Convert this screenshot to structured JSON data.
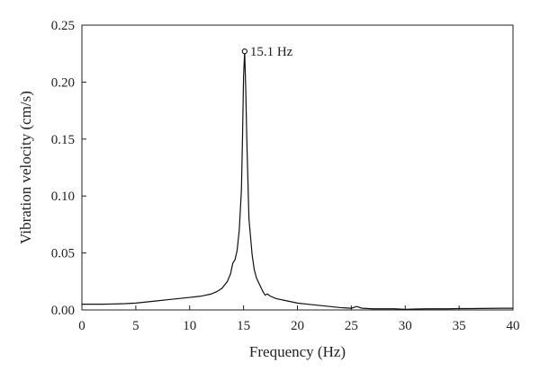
{
  "chart_data": {
    "type": "line",
    "title": "",
    "xlabel": "Frequency (Hz)",
    "ylabel": "Vibration velocity (cm/s)",
    "xlim": [
      0,
      40
    ],
    "ylim": [
      0,
      0.25
    ],
    "x_ticks": [
      "0",
      "5",
      "10",
      "15",
      "20",
      "25",
      "30",
      "35",
      "40"
    ],
    "y_ticks": [
      "0.00",
      "0.05",
      "0.10",
      "0.15",
      "0.20",
      "0.25"
    ],
    "grid": false,
    "legend": "none",
    "line_color": "#111111",
    "series": [
      {
        "x": [
          0,
          2,
          4,
          5,
          6,
          7,
          8,
          9,
          10,
          11,
          12,
          12.5,
          13,
          13.5,
          13.8,
          14,
          14.2,
          14.4,
          14.6,
          14.8,
          14.9,
          15.0,
          15.1,
          15.2,
          15.3,
          15.5,
          15.8,
          16,
          16.2,
          16.5,
          16.8,
          17,
          17.2,
          17.5,
          18,
          19,
          20,
          21,
          22,
          23,
          24,
          25,
          25.5,
          26,
          27,
          28,
          29,
          30,
          31,
          32,
          33,
          34,
          35,
          36,
          37,
          38,
          39,
          40
        ],
        "y": [
          0.005,
          0.005,
          0.0055,
          0.006,
          0.007,
          0.008,
          0.009,
          0.01,
          0.011,
          0.012,
          0.014,
          0.016,
          0.019,
          0.025,
          0.032,
          0.041,
          0.044,
          0.052,
          0.07,
          0.105,
          0.15,
          0.205,
          0.227,
          0.195,
          0.15,
          0.08,
          0.048,
          0.035,
          0.028,
          0.022,
          0.016,
          0.013,
          0.014,
          0.012,
          0.01,
          0.008,
          0.006,
          0.005,
          0.004,
          0.003,
          0.002,
          0.0015,
          0.003,
          0.0015,
          0.001,
          0.001,
          0.001,
          0.0005,
          0.0008,
          0.001,
          0.001,
          0.001,
          0.0012,
          0.0012,
          0.0013,
          0.0014,
          0.0015,
          0.0015
        ]
      }
    ],
    "annotations": [
      {
        "x": 15.1,
        "y": 0.227,
        "text": "15.1 Hz",
        "marker": "open-circle"
      }
    ]
  }
}
